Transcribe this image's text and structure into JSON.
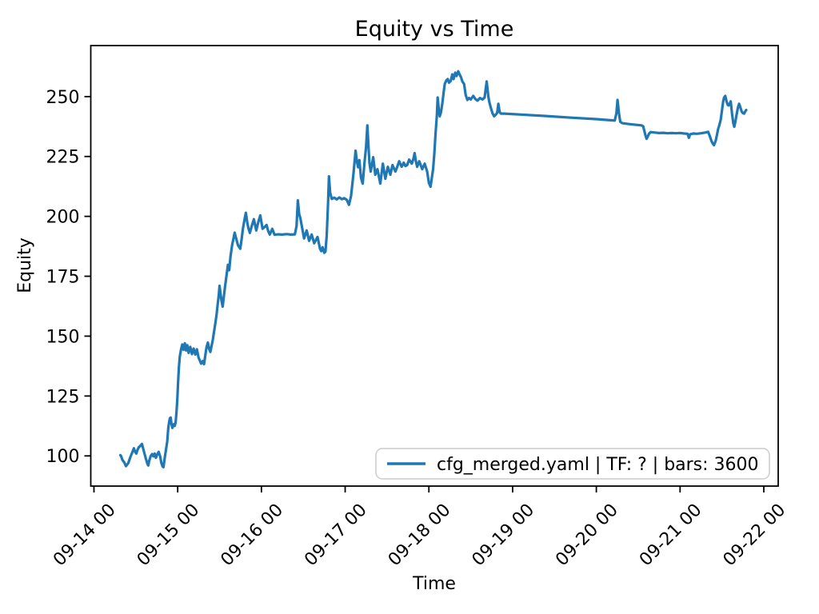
{
  "figure": {
    "title": "Equity vs Time",
    "background": "#ffffff"
  },
  "chart_data": {
    "type": "line",
    "title": "Equity vs Time",
    "xlabel": "Time",
    "ylabel": "Equity",
    "grid": false,
    "legend_position": "lower right",
    "x_encoding": "days after the 09-14 00 tick",
    "x_tick_positions": [
      0,
      1,
      2,
      3,
      4,
      5,
      6,
      7,
      8
    ],
    "x_tick_labels": [
      "09-14 00",
      "09-15 00",
      "09-16 00",
      "09-17 00",
      "09-18 00",
      "09-19 00",
      "09-20 00",
      "09-21 00",
      "09-22 00"
    ],
    "y_ticks": [
      100,
      125,
      150,
      175,
      200,
      225,
      250
    ],
    "xlim": [
      -0.038,
      8.172
    ],
    "ylim": [
      87.4,
      271.3
    ],
    "series": [
      {
        "name": "cfg_merged.yaml | TF: ? | bars: 3600",
        "color": "#1f77b4",
        "points": [
          [
            0.315,
            100.3
          ],
          [
            0.325,
            99.8
          ],
          [
            0.34,
            98.3
          ],
          [
            0.363,
            97.2
          ],
          [
            0.382,
            95.7
          ],
          [
            0.41,
            97.0
          ],
          [
            0.435,
            99.5
          ],
          [
            0.458,
            101.5
          ],
          [
            0.477,
            103.2
          ],
          [
            0.49,
            101.8
          ],
          [
            0.506,
            101.0
          ],
          [
            0.52,
            102.5
          ],
          [
            0.535,
            103.6
          ],
          [
            0.554,
            104.2
          ],
          [
            0.573,
            105.0
          ],
          [
            0.59,
            102.8
          ],
          [
            0.601,
            101.3
          ],
          [
            0.62,
            98.8
          ],
          [
            0.64,
            96.5
          ],
          [
            0.649,
            96.0
          ],
          [
            0.66,
            98.0
          ],
          [
            0.678,
            100.0
          ],
          [
            0.695,
            100.8
          ],
          [
            0.71,
            99.8
          ],
          [
            0.725,
            101.0
          ],
          [
            0.74,
            99.2
          ],
          [
            0.755,
            100.5
          ],
          [
            0.773,
            101.7
          ],
          [
            0.79,
            99.8
          ],
          [
            0.805,
            97.0
          ],
          [
            0.82,
            95.6
          ],
          [
            0.83,
            95.3
          ],
          [
            0.845,
            99.0
          ],
          [
            0.859,
            102.3
          ],
          [
            0.875,
            106.0
          ],
          [
            0.888,
            111.7
          ],
          [
            0.9,
            114.5
          ],
          [
            0.907,
            115.7
          ],
          [
            0.916,
            116.0
          ],
          [
            0.925,
            113.5
          ],
          [
            0.936,
            111.7
          ],
          [
            0.947,
            112.8
          ],
          [
            0.955,
            113.3
          ],
          [
            0.965,
            112.5
          ],
          [
            0.975,
            114.0
          ],
          [
            0.985,
            118.0
          ],
          [
            0.995,
            123.0
          ],
          [
            1.005,
            131.0
          ],
          [
            1.015,
            137.0
          ],
          [
            1.025,
            141.5
          ],
          [
            1.04,
            144.5
          ],
          [
            1.055,
            146.5
          ],
          [
            1.07,
            144.3
          ],
          [
            1.085,
            147.0
          ],
          [
            1.1,
            144.0
          ],
          [
            1.115,
            146.2
          ],
          [
            1.13,
            143.0
          ],
          [
            1.15,
            145.5
          ],
          [
            1.17,
            142.5
          ],
          [
            1.19,
            144.8
          ],
          [
            1.21,
            142.3
          ],
          [
            1.23,
            144.5
          ],
          [
            1.25,
            141.0
          ],
          [
            1.265,
            139.8
          ],
          [
            1.28,
            138.5
          ],
          [
            1.3,
            139.6
          ],
          [
            1.315,
            138.3
          ],
          [
            1.33,
            142.0
          ],
          [
            1.345,
            145.5
          ],
          [
            1.36,
            147.3
          ],
          [
            1.375,
            144.8
          ],
          [
            1.39,
            143.4
          ],
          [
            1.405,
            146.0
          ],
          [
            1.42,
            148.5
          ],
          [
            1.435,
            152.0
          ],
          [
            1.45,
            155.5
          ],
          [
            1.465,
            159.0
          ],
          [
            1.475,
            162.5
          ],
          [
            1.49,
            167.0
          ],
          [
            1.5,
            171.0
          ],
          [
            1.51,
            168.0
          ],
          [
            1.525,
            164.5
          ],
          [
            1.537,
            162.3
          ],
          [
            1.55,
            166.0
          ],
          [
            1.565,
            170.5
          ],
          [
            1.58,
            174.5
          ],
          [
            1.6,
            179.8
          ],
          [
            1.615,
            177.5
          ],
          [
            1.63,
            183.0
          ],
          [
            1.65,
            188.0
          ],
          [
            1.665,
            190.5
          ],
          [
            1.68,
            193.2
          ],
          [
            1.7,
            190.5
          ],
          [
            1.72,
            188.0
          ],
          [
            1.747,
            186.5
          ],
          [
            1.765,
            191.0
          ],
          [
            1.78,
            195.0
          ],
          [
            1.8,
            199.0
          ],
          [
            1.814,
            201.5
          ],
          [
            1.83,
            197.5
          ],
          [
            1.845,
            195.0
          ],
          [
            1.862,
            193.1
          ],
          [
            1.885,
            196.0
          ],
          [
            1.91,
            198.8
          ],
          [
            1.938,
            194.1
          ],
          [
            1.96,
            197.3
          ],
          [
            1.986,
            200.4
          ],
          [
            2.014,
            194.8
          ],
          [
            2.04,
            195.6
          ],
          [
            2.062,
            196.4
          ],
          [
            2.08,
            194.0
          ],
          [
            2.1,
            192.4
          ],
          [
            2.129,
            194.8
          ],
          [
            2.157,
            192.3
          ],
          [
            2.2,
            192.5
          ],
          [
            2.25,
            192.4
          ],
          [
            2.3,
            192.6
          ],
          [
            2.35,
            192.4
          ],
          [
            2.4,
            192.5
          ],
          [
            2.42,
            196.0
          ],
          [
            2.435,
            206.7
          ],
          [
            2.45,
            201.0
          ],
          [
            2.465,
            199.3
          ],
          [
            2.48,
            196.4
          ],
          [
            2.51,
            190.8
          ],
          [
            2.54,
            194.1
          ],
          [
            2.57,
            189.8
          ],
          [
            2.6,
            192.4
          ],
          [
            2.63,
            188.8
          ],
          [
            2.67,
            191.4
          ],
          [
            2.7,
            186.5
          ],
          [
            2.715,
            185.5
          ],
          [
            2.73,
            187.1
          ],
          [
            2.75,
            184.8
          ],
          [
            2.765,
            185.3
          ],
          [
            2.78,
            192.0
          ],
          [
            2.795,
            205.0
          ],
          [
            2.807,
            216.7
          ],
          [
            2.82,
            210.0
          ],
          [
            2.84,
            207.3
          ],
          [
            2.87,
            207.8
          ],
          [
            2.9,
            207.1
          ],
          [
            2.93,
            207.9
          ],
          [
            2.96,
            207.2
          ],
          [
            2.99,
            207.6
          ],
          [
            3.02,
            206.9
          ],
          [
            3.045,
            204.8
          ],
          [
            3.07,
            208.5
          ],
          [
            3.085,
            213.0
          ],
          [
            3.1,
            218.0
          ],
          [
            3.125,
            227.4
          ],
          [
            3.14,
            223.0
          ],
          [
            3.155,
            220.5
          ],
          [
            3.17,
            223.5
          ],
          [
            3.19,
            216.0
          ],
          [
            3.21,
            213.7
          ],
          [
            3.23,
            222.0
          ],
          [
            3.25,
            229.0
          ],
          [
            3.265,
            238.0
          ],
          [
            3.28,
            228.0
          ],
          [
            3.29,
            222.4
          ],
          [
            3.305,
            218.7
          ],
          [
            3.32,
            221.5
          ],
          [
            3.335,
            224.7
          ],
          [
            3.36,
            217.4
          ],
          [
            3.385,
            219.7
          ],
          [
            3.42,
            213.7
          ],
          [
            3.45,
            222.0
          ],
          [
            3.48,
            215.7
          ],
          [
            3.51,
            220.7
          ],
          [
            3.54,
            217.4
          ],
          [
            3.565,
            221.4
          ],
          [
            3.6,
            218.7
          ],
          [
            3.62,
            220.5
          ],
          [
            3.645,
            223.0
          ],
          [
            3.675,
            220.7
          ],
          [
            3.7,
            222.4
          ],
          [
            3.72,
            221.0
          ],
          [
            3.74,
            221.4
          ],
          [
            3.765,
            223.7
          ],
          [
            3.795,
            222.0
          ],
          [
            3.815,
            224.0
          ],
          [
            3.83,
            226.4
          ],
          [
            3.845,
            223.0
          ],
          [
            3.86,
            220.7
          ],
          [
            3.885,
            223.0
          ],
          [
            3.92,
            219.7
          ],
          [
            3.95,
            222.0
          ],
          [
            3.98,
            218.7
          ],
          [
            4.0,
            214.0
          ],
          [
            4.02,
            212.4
          ],
          [
            4.05,
            219.7
          ],
          [
            4.065,
            226.0
          ],
          [
            4.08,
            234.7
          ],
          [
            4.095,
            242.0
          ],
          [
            4.105,
            249.6
          ],
          [
            4.12,
            244.0
          ],
          [
            4.13,
            241.8
          ],
          [
            4.145,
            243.5
          ],
          [
            4.16,
            247.0
          ],
          [
            4.175,
            251.5
          ],
          [
            4.19,
            255.3
          ],
          [
            4.21,
            256.8
          ],
          [
            4.225,
            257.3
          ],
          [
            4.24,
            255.8
          ],
          [
            4.26,
            256.5
          ],
          [
            4.28,
            259.3
          ],
          [
            4.295,
            257.3
          ],
          [
            4.315,
            260.0
          ],
          [
            4.33,
            258.6
          ],
          [
            4.35,
            260.6
          ],
          [
            4.37,
            259.0
          ],
          [
            4.385,
            258.0
          ],
          [
            4.4,
            256.3
          ],
          [
            4.42,
            255.3
          ],
          [
            4.44,
            250.6
          ],
          [
            4.46,
            248.6
          ],
          [
            4.48,
            249.4
          ],
          [
            4.5,
            248.8
          ],
          [
            4.53,
            250.3
          ],
          [
            4.555,
            249.0
          ],
          [
            4.58,
            248.3
          ],
          [
            4.61,
            249.4
          ],
          [
            4.64,
            248.8
          ],
          [
            4.665,
            249.6
          ],
          [
            4.69,
            256.3
          ],
          [
            4.71,
            250.0
          ],
          [
            4.72,
            248.0
          ],
          [
            4.74,
            245.3
          ],
          [
            4.76,
            243.0
          ],
          [
            4.78,
            241.8
          ],
          [
            4.8,
            242.5
          ],
          [
            4.815,
            243.2
          ],
          [
            4.83,
            247.0
          ],
          [
            4.845,
            243.5
          ],
          [
            4.86,
            242.9
          ],
          [
            4.9,
            242.9
          ],
          [
            5.1,
            242.5
          ],
          [
            5.4,
            241.9
          ],
          [
            5.7,
            241.2
          ],
          [
            6.0,
            240.6
          ],
          [
            6.22,
            240.0
          ],
          [
            6.24,
            243.0
          ],
          [
            6.253,
            248.6
          ],
          [
            6.27,
            243.0
          ],
          [
            6.285,
            239.5
          ],
          [
            6.31,
            238.9
          ],
          [
            6.4,
            238.5
          ],
          [
            6.48,
            238.2
          ],
          [
            6.54,
            238.0
          ],
          [
            6.56,
            237.6
          ],
          [
            6.585,
            234.0
          ],
          [
            6.6,
            232.4
          ],
          [
            6.615,
            233.4
          ],
          [
            6.63,
            234.6
          ],
          [
            6.65,
            235.2
          ],
          [
            6.7,
            235.0
          ],
          [
            6.75,
            234.8
          ],
          [
            6.8,
            234.9
          ],
          [
            6.85,
            234.7
          ],
          [
            6.9,
            234.8
          ],
          [
            6.95,
            234.7
          ],
          [
            7.0,
            234.8
          ],
          [
            7.05,
            234.6
          ],
          [
            7.09,
            234.5
          ],
          [
            7.105,
            232.8
          ],
          [
            7.12,
            234.3
          ],
          [
            7.16,
            234.6
          ],
          [
            7.2,
            234.5
          ],
          [
            7.25,
            234.7
          ],
          [
            7.3,
            235.0
          ],
          [
            7.335,
            235.3
          ],
          [
            7.355,
            233.5
          ],
          [
            7.375,
            231.4
          ],
          [
            7.39,
            230.4
          ],
          [
            7.405,
            229.7
          ],
          [
            7.425,
            231.5
          ],
          [
            7.44,
            234.0
          ],
          [
            7.455,
            236.5
          ],
          [
            7.47,
            238.2
          ],
          [
            7.485,
            240.3
          ],
          [
            7.5,
            244.0
          ],
          [
            7.515,
            248.0
          ],
          [
            7.525,
            249.6
          ],
          [
            7.54,
            250.3
          ],
          [
            7.555,
            248.0
          ],
          [
            7.57,
            246.5
          ],
          [
            7.58,
            246.3
          ],
          [
            7.595,
            247.2
          ],
          [
            7.605,
            248.0
          ],
          [
            7.62,
            243.0
          ],
          [
            7.635,
            239.0
          ],
          [
            7.648,
            237.4
          ],
          [
            7.66,
            239.5
          ],
          [
            7.675,
            242.5
          ],
          [
            7.69,
            245.2
          ],
          [
            7.705,
            247.0
          ],
          [
            7.72,
            245.5
          ],
          [
            7.735,
            243.8
          ],
          [
            7.75,
            243.1
          ],
          [
            7.765,
            242.9
          ],
          [
            7.775,
            243.6
          ],
          [
            7.79,
            244.4
          ]
        ]
      }
    ]
  },
  "legend": {
    "entries": [
      {
        "label": "cfg_merged.yaml | TF: ? | bars: 3600",
        "color": "#1f77b4"
      }
    ]
  }
}
